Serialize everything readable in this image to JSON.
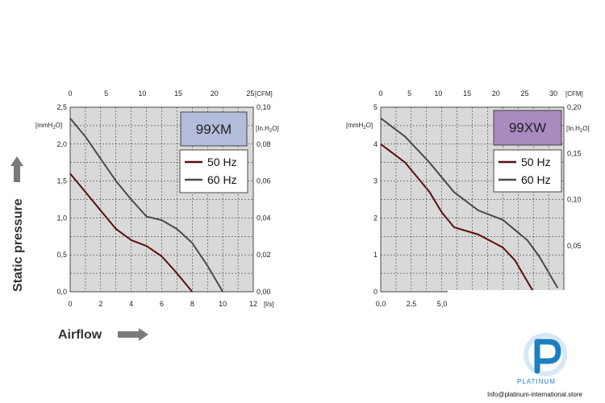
{
  "side_labels": {
    "y": "Static pressure",
    "x": "Airflow"
  },
  "colors": {
    "plot_bg": "#d9d9d9",
    "grid": "#222222",
    "series_50": "#5a0f0f",
    "series_60": "#4a4a4a",
    "model_box_left": "#b4bcdc",
    "model_box_right": "#a98bc0",
    "arrow": "#7a7a7a",
    "logo_blue": "#1b7fc2"
  },
  "chart_data": [
    {
      "type": "line",
      "model": "99XM",
      "x_bottom": {
        "unit": "[l/s]",
        "ticks": [
          "0",
          "2",
          "4",
          "6",
          "8",
          "10",
          "12"
        ],
        "range": [
          0,
          12
        ]
      },
      "x_top": {
        "unit": "[CFM]",
        "ticks": [
          "0",
          "5",
          "10",
          "15",
          "20",
          "25"
        ],
        "range": [
          0,
          25.4
        ]
      },
      "y_left": {
        "unit": "[mmH2O]",
        "ticks": [
          "0,0",
          "0,5",
          "1,0",
          "1,5",
          "2,0",
          "2,5"
        ],
        "range": [
          0,
          2.5
        ]
      },
      "y_right": {
        "unit": "[In.H2O]",
        "ticks": [
          "0,00",
          "0,02",
          "0,04",
          "0,06",
          "0,08",
          "0,10"
        ],
        "range": [
          0,
          0.1
        ]
      },
      "grid": true,
      "legend": "right",
      "series": [
        {
          "name": "50 Hz",
          "x": [
            0,
            1,
            2,
            3,
            4,
            5,
            6,
            7,
            8
          ],
          "y": [
            1.6,
            1.35,
            1.1,
            0.85,
            0.7,
            0.62,
            0.48,
            0.25,
            0.0
          ]
        },
        {
          "name": "60 Hz",
          "x": [
            0,
            1,
            2,
            3,
            4,
            5,
            6,
            7,
            8,
            9,
            10
          ],
          "y": [
            2.35,
            2.1,
            1.8,
            1.5,
            1.25,
            1.02,
            0.97,
            0.85,
            0.66,
            0.35,
            0.0
          ]
        }
      ]
    },
    {
      "type": "line",
      "model": "99XW",
      "x_bottom": {
        "unit": "",
        "ticks": [
          "0,0",
          "2,5",
          "5,0"
        ],
        "range": [
          0,
          15
        ]
      },
      "x_top": {
        "unit": "[CFM]",
        "ticks": [
          "0",
          "5",
          "10",
          "15",
          "20",
          "25",
          "30"
        ],
        "range": [
          0,
          31.8
        ]
      },
      "y_left": {
        "unit": "[mmH2O]",
        "ticks": [
          "0",
          "1",
          "2",
          "3",
          "4",
          "5"
        ],
        "range": [
          0,
          5
        ]
      },
      "y_right": {
        "unit": "[In.H2O]",
        "ticks": [
          "0,05",
          "0,10",
          "0,15",
          "0,20"
        ],
        "tick_values": [
          0.05,
          0.1,
          0.15,
          0.2
        ],
        "range": [
          0,
          0.2
        ]
      },
      "grid": true,
      "legend": "right",
      "series": [
        {
          "name": "50 Hz",
          "x": [
            0,
            2,
            4,
            5,
            6,
            8,
            10,
            11,
            12.5
          ],
          "y": [
            4.0,
            3.5,
            2.7,
            2.15,
            1.75,
            1.55,
            1.2,
            0.85,
            0.0
          ]
        },
        {
          "name": "60 Hz",
          "x": [
            0,
            2,
            4,
            6,
            8,
            10,
            12,
            13,
            14.5
          ],
          "y": [
            4.7,
            4.2,
            3.5,
            2.7,
            2.2,
            1.95,
            1.4,
            0.95,
            0.1
          ]
        }
      ]
    }
  ],
  "logo": {
    "brand": "PLATINUM",
    "email": "Info@platinum-international.store"
  }
}
